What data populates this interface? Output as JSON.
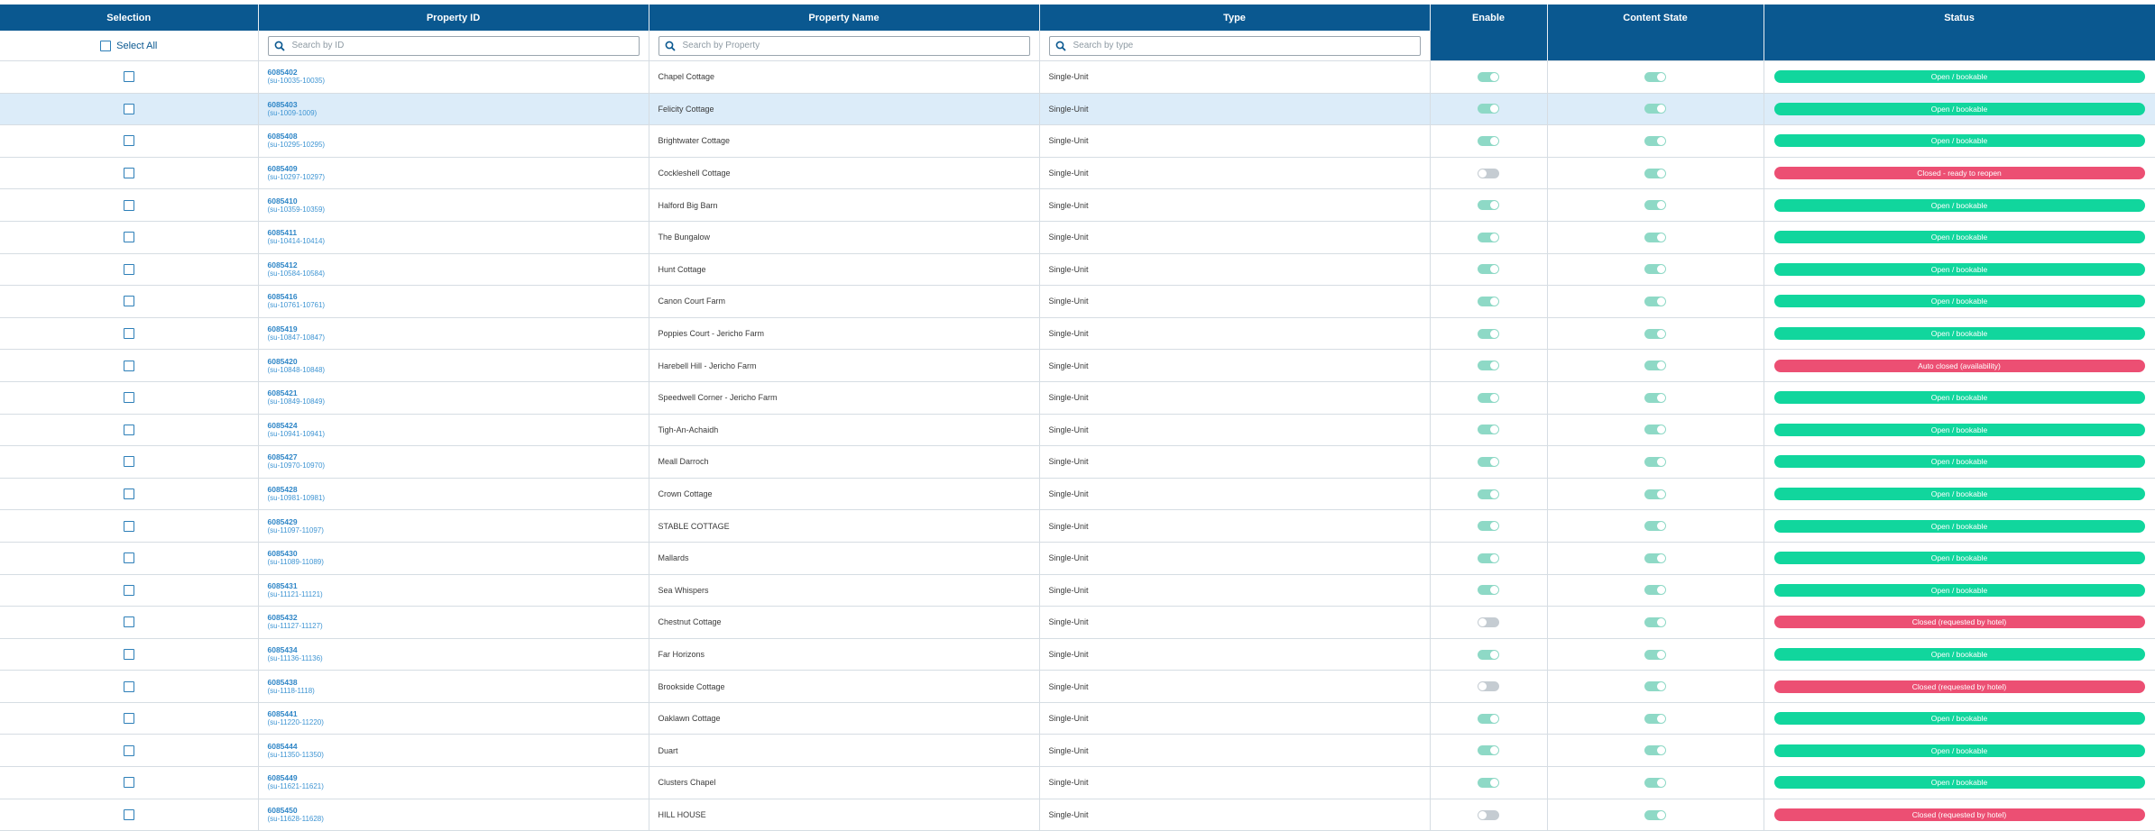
{
  "headers": {
    "selection": "Selection",
    "property_id": "Property ID",
    "property_name": "Property Name",
    "type": "Type",
    "enable": "Enable",
    "content_state": "Content State",
    "status": "Status"
  },
  "filters": {
    "select_all_label": "Select All",
    "id_placeholder": "Search by ID",
    "property_placeholder": "Search by Property",
    "type_placeholder": "Search by type"
  },
  "colors": {
    "header_bg": "#0a5890",
    "open_badge": "#11d69d",
    "closed_badge": "#ec4f73",
    "highlight_row": "#dcecf9"
  },
  "rows": [
    {
      "id": "6085402",
      "sub": "(su-10035-10035)",
      "name": "Chapel Cottage",
      "type": "Single-Unit",
      "enable": true,
      "content": true,
      "status": "Open / bookable",
      "status_kind": "open"
    },
    {
      "id": "6085403",
      "sub": "(su-1009-1009)",
      "name": "Felicity Cottage",
      "type": "Single-Unit",
      "enable": true,
      "content": true,
      "status": "Open / bookable",
      "status_kind": "open",
      "highlight": true
    },
    {
      "id": "6085408",
      "sub": "(su-10295-10295)",
      "name": "Brightwater Cottage",
      "type": "Single-Unit",
      "enable": true,
      "content": true,
      "status": "Open / bookable",
      "status_kind": "open"
    },
    {
      "id": "6085409",
      "sub": "(su-10297-10297)",
      "name": "Cockleshell Cottage",
      "type": "Single-Unit",
      "enable": false,
      "content": true,
      "status": "Closed - ready to reopen",
      "status_kind": "closed"
    },
    {
      "id": "6085410",
      "sub": "(su-10359-10359)",
      "name": "Halford Big Barn",
      "type": "Single-Unit",
      "enable": true,
      "content": true,
      "status": "Open / bookable",
      "status_kind": "open"
    },
    {
      "id": "6085411",
      "sub": "(su-10414-10414)",
      "name": "The Bungalow",
      "type": "Single-Unit",
      "enable": true,
      "content": true,
      "status": "Open / bookable",
      "status_kind": "open"
    },
    {
      "id": "6085412",
      "sub": "(su-10584-10584)",
      "name": "Hunt Cottage",
      "type": "Single-Unit",
      "enable": true,
      "content": true,
      "status": "Open / bookable",
      "status_kind": "open"
    },
    {
      "id": "6085416",
      "sub": "(su-10761-10761)",
      "name": "Canon Court Farm",
      "type": "Single-Unit",
      "enable": true,
      "content": true,
      "status": "Open / bookable",
      "status_kind": "open"
    },
    {
      "id": "6085419",
      "sub": "(su-10847-10847)",
      "name": "Poppies Court - Jericho Farm",
      "type": "Single-Unit",
      "enable": true,
      "content": true,
      "status": "Open / bookable",
      "status_kind": "open"
    },
    {
      "id": "6085420",
      "sub": "(su-10848-10848)",
      "name": "Harebell Hill - Jericho Farm",
      "type": "Single-Unit",
      "enable": true,
      "content": true,
      "status": "Auto closed (availability)",
      "status_kind": "closed"
    },
    {
      "id": "6085421",
      "sub": "(su-10849-10849)",
      "name": "Speedwell Corner - Jericho Farm",
      "type": "Single-Unit",
      "enable": true,
      "content": true,
      "status": "Open / bookable",
      "status_kind": "open"
    },
    {
      "id": "6085424",
      "sub": "(su-10941-10941)",
      "name": "Tigh-An-Achaidh",
      "type": "Single-Unit",
      "enable": true,
      "content": true,
      "status": "Open / bookable",
      "status_kind": "open"
    },
    {
      "id": "6085427",
      "sub": "(su-10970-10970)",
      "name": "Meall Darroch",
      "type": "Single-Unit",
      "enable": true,
      "content": true,
      "status": "Open / bookable",
      "status_kind": "open"
    },
    {
      "id": "6085428",
      "sub": "(su-10981-10981)",
      "name": "Crown Cottage",
      "type": "Single-Unit",
      "enable": true,
      "content": true,
      "status": "Open / bookable",
      "status_kind": "open"
    },
    {
      "id": "6085429",
      "sub": "(su-11097-11097)",
      "name": "STABLE COTTAGE",
      "type": "Single-Unit",
      "enable": true,
      "content": true,
      "status": "Open / bookable",
      "status_kind": "open"
    },
    {
      "id": "6085430",
      "sub": "(su-11089-11089)",
      "name": "Mallards",
      "type": "Single-Unit",
      "enable": true,
      "content": true,
      "status": "Open / bookable",
      "status_kind": "open"
    },
    {
      "id": "6085431",
      "sub": "(su-11121-11121)",
      "name": "Sea Whispers",
      "type": "Single-Unit",
      "enable": true,
      "content": true,
      "status": "Open / bookable",
      "status_kind": "open"
    },
    {
      "id": "6085432",
      "sub": "(su-11127-11127)",
      "name": "Chestnut Cottage",
      "type": "Single-Unit",
      "enable": false,
      "content": true,
      "status": "Closed (requested by hotel)",
      "status_kind": "closed"
    },
    {
      "id": "6085434",
      "sub": "(su-11136-11136)",
      "name": "Far Horizons",
      "type": "Single-Unit",
      "enable": true,
      "content": true,
      "status": "Open / bookable",
      "status_kind": "open"
    },
    {
      "id": "6085438",
      "sub": "(su-1118-1118)",
      "name": "Brookside Cottage",
      "type": "Single-Unit",
      "enable": false,
      "content": true,
      "status": "Closed (requested by hotel)",
      "status_kind": "closed"
    },
    {
      "id": "6085441",
      "sub": "(su-11220-11220)",
      "name": "Oaklawn Cottage",
      "type": "Single-Unit",
      "enable": true,
      "content": true,
      "status": "Open / bookable",
      "status_kind": "open"
    },
    {
      "id": "6085444",
      "sub": "(su-11350-11350)",
      "name": "Duart",
      "type": "Single-Unit",
      "enable": true,
      "content": true,
      "status": "Open / bookable",
      "status_kind": "open"
    },
    {
      "id": "6085449",
      "sub": "(su-11621-11621)",
      "name": "Clusters Chapel",
      "type": "Single-Unit",
      "enable": true,
      "content": true,
      "status": "Open / bookable",
      "status_kind": "open"
    },
    {
      "id": "6085450",
      "sub": "(su-11628-11628)",
      "name": "HILL HOUSE",
      "type": "Single-Unit",
      "enable": false,
      "content": true,
      "status": "Closed (requested by hotel)",
      "status_kind": "closed"
    }
  ]
}
